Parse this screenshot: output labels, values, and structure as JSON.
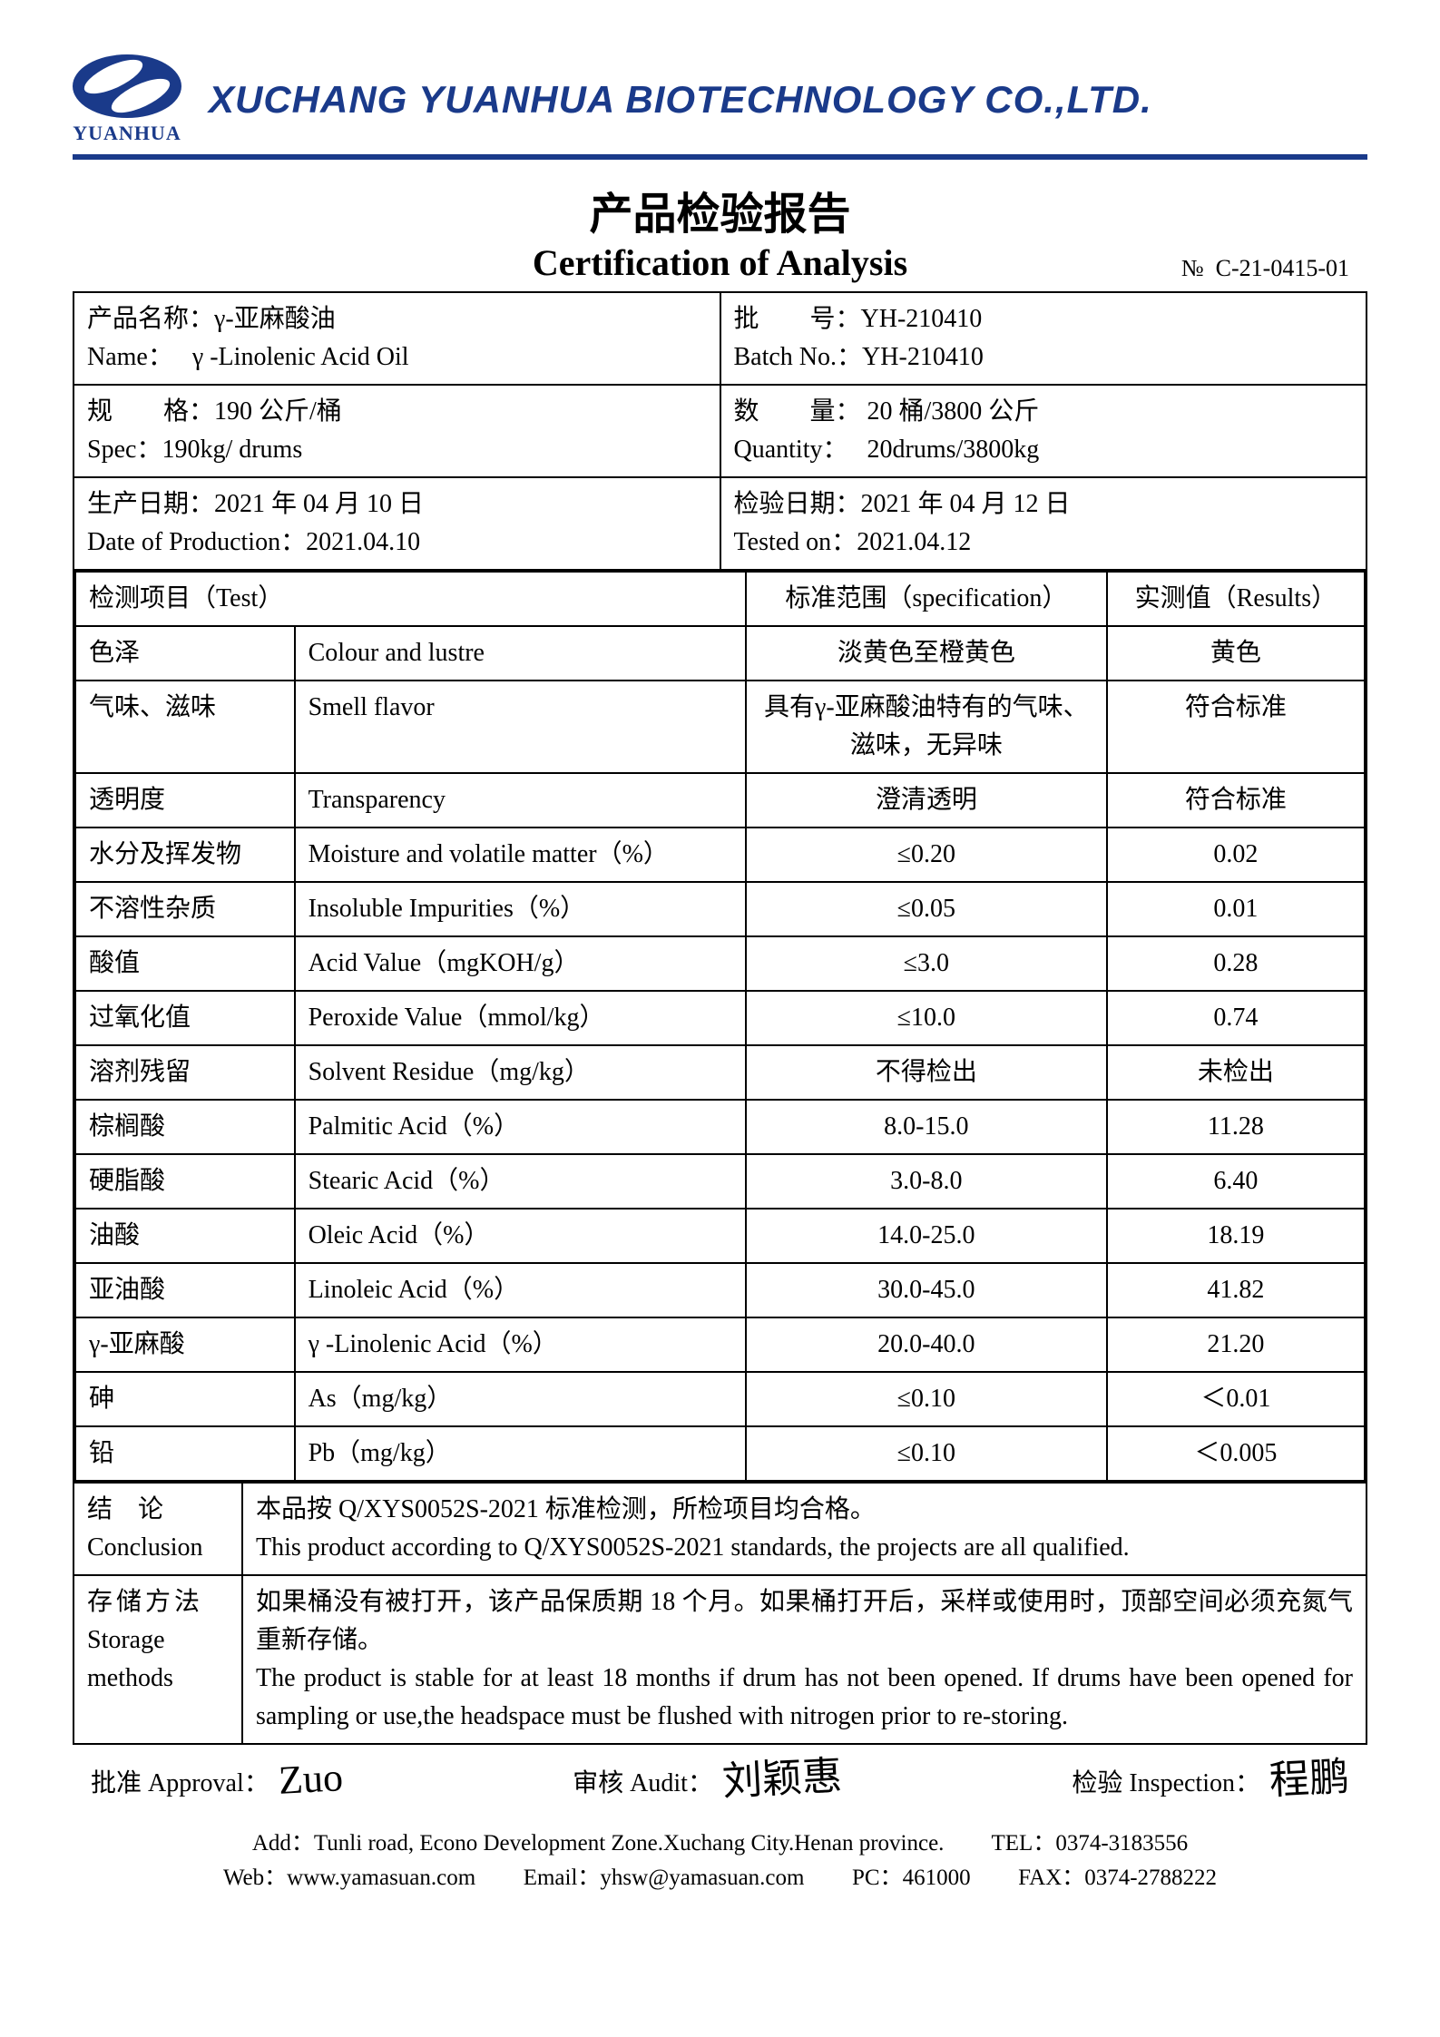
{
  "brand": {
    "logo_text": "YUANHUA",
    "company_name": "XUCHANG YUANHUA BIOTECHNOLOGY CO.,LTD.",
    "brand_color": "#1a3a8a"
  },
  "titles": {
    "cn": "产品检验报告",
    "en": "Certification of Analysis",
    "doc_no_label": "№",
    "doc_no": "C-21-0415-01"
  },
  "info": {
    "name_label_cn": "产品名称：",
    "name_cn": "γ-亚麻酸油",
    "name_label_en": "Name：",
    "name_en": "γ -Linolenic Acid Oil",
    "batch_label_cn": "批　　号：",
    "batch_cn": "YH-210410",
    "batch_label_en": "Batch No.：",
    "batch_en": "YH-210410",
    "spec_label_cn": "规　　格：",
    "spec_cn": "190 公斤/桶",
    "spec_label_en": "Spec：",
    "spec_en": "190kg/ drums",
    "qty_label_cn": "数　　量：",
    "qty_cn": "20 桶/3800 公斤",
    "qty_label_en": "Quantity：",
    "qty_en": "20drums/3800kg",
    "prod_label_cn": "生产日期：",
    "prod_cn": "2021 年 04 月 10 日",
    "prod_label_en": "Date of Production：",
    "prod_en": "2021.04.10",
    "test_label_cn": "检验日期：",
    "test_cn": "2021 年 04 月 12 日",
    "test_label_en": "Tested on：",
    "test_en": "2021.04.12"
  },
  "tests": {
    "header": {
      "item": "检测项目（Test）",
      "spec": "标准范围（specification）",
      "result": "实测值（Results）"
    },
    "rows": [
      {
        "cn": "色泽",
        "en": "Colour and lustre",
        "spec": "淡黄色至橙黄色",
        "result": "黄色"
      },
      {
        "cn": "气味、滋味",
        "en": "Smell flavor",
        "spec": "具有γ-亚麻酸油特有的气味、滋味，无异味",
        "result": "符合标准"
      },
      {
        "cn": "透明度",
        "en": "Transparency",
        "spec": "澄清透明",
        "result": "符合标准"
      },
      {
        "cn": "水分及挥发物",
        "en": "Moisture and volatile matter（%）",
        "spec": "≤0.20",
        "result": "0.02"
      },
      {
        "cn": "不溶性杂质",
        "en": "Insoluble Impurities（%）",
        "spec": "≤0.05",
        "result": "0.01"
      },
      {
        "cn": "酸值",
        "en": "Acid Value（mgKOH/g）",
        "spec": "≤3.0",
        "result": "0.28"
      },
      {
        "cn": "过氧化值",
        "en": "Peroxide Value（mmol/kg）",
        "spec": "≤10.0",
        "result": "0.74"
      },
      {
        "cn": "溶剂残留",
        "en": "Solvent Residue（mg/kg）",
        "spec": "不得检出",
        "result": "未检出"
      },
      {
        "cn": "棕榈酸",
        "en": "Palmitic Acid（%）",
        "spec": "8.0-15.0",
        "result": "11.28"
      },
      {
        "cn": "硬脂酸",
        "en": "Stearic Acid（%）",
        "spec": "3.0-8.0",
        "result": "6.40"
      },
      {
        "cn": "油酸",
        "en": "Oleic Acid（%）",
        "spec": "14.0-25.0",
        "result": "18.19"
      },
      {
        "cn": "亚油酸",
        "en": "Linoleic Acid（%）",
        "spec": "30.0-45.0",
        "result": "41.82"
      },
      {
        "cn": "γ-亚麻酸",
        "en": "γ -Linolenic Acid（%）",
        "spec": "20.0-40.0",
        "result": "21.20"
      },
      {
        "cn": "砷",
        "en": "As（mg/kg）",
        "spec": "≤0.10",
        "result": "＜0.01"
      },
      {
        "cn": "铅",
        "en": "Pb（mg/kg）",
        "spec": "≤0.10",
        "result": "＜0.005"
      }
    ]
  },
  "conclusion": {
    "label_cn": "结论",
    "label_en": "Conclusion",
    "text_cn": "本品按 Q/XYS0052S-2021 标准检测，所检项目均合格。",
    "text_en": "This product according to Q/XYS0052S-2021 standards, the projects are all qualified."
  },
  "storage": {
    "label_cn": "存储方法",
    "label_en": "Storage methods",
    "text_cn": "如果桶没有被打开，该产品保质期 18 个月。如果桶打开后，采样或使用时，顶部空间必须充氮气重新存储。",
    "text_en": "The product is stable for at least 18 months if drum has not been opened. If drums have been opened for sampling or use,the headspace must be flushed with nitrogen prior to re-storing."
  },
  "signatures": {
    "approval_label": "批准 Approval：",
    "audit_label": "审核 Audit：",
    "inspection_label": "检验 Inspection：",
    "approval_sig": "Zuo",
    "audit_sig": "刘颖惠",
    "inspection_sig": "程鹏"
  },
  "footer": {
    "line1_addr_label": "Add：",
    "line1_addr": "Tunli road, Econo Development Zone.Xuchang City.Henan province.",
    "line1_tel_label": "TEL：",
    "line1_tel": "0374-3183556",
    "line2_web_label": "Web：",
    "line2_web": "www.yamasuan.com",
    "line2_email_label": "Email：",
    "line2_email": "yhsw@yamasuan.com",
    "line2_pc_label": "PC：",
    "line2_pc": "461000",
    "line2_fax_label": "FAX：",
    "line2_fax": "0374-2788222"
  }
}
